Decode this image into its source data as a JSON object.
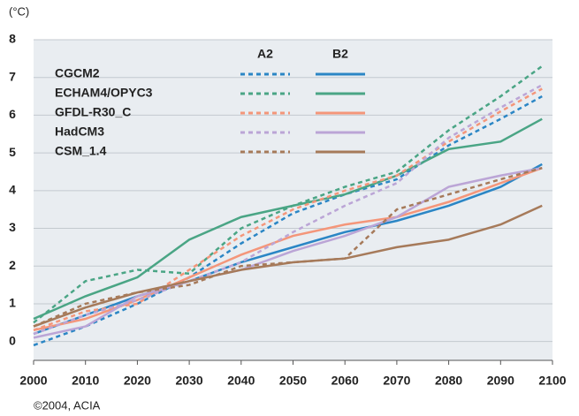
{
  "chart_data": {
    "type": "line",
    "y_label": "(°C)",
    "source": "©2004, ACIA",
    "x": [
      2000,
      2010,
      2020,
      2030,
      2040,
      2050,
      2060,
      2070,
      2080,
      2090,
      2098
    ],
    "xlim": [
      2000,
      2100
    ],
    "xticks": [
      2000,
      2010,
      2020,
      2030,
      2040,
      2050,
      2060,
      2070,
      2080,
      2090,
      2100
    ],
    "ylim": [
      -0.5,
      8
    ],
    "yticks": [
      0,
      1,
      2,
      3,
      4,
      5,
      6,
      7,
      8
    ],
    "grid": true,
    "scenarios": [
      {
        "name": "A2",
        "style": "dashed"
      },
      {
        "name": "B2",
        "style": "solid"
      }
    ],
    "models": [
      {
        "name": "CGCM2",
        "color": "#2b86c5",
        "values": [
          [
            -0.1,
            0.4,
            1.0,
            1.7,
            2.6,
            3.4,
            3.9,
            4.3,
            5.2,
            5.9,
            6.5
          ],
          [
            0.2,
            0.7,
            1.2,
            1.6,
            2.1,
            2.5,
            2.9,
            3.2,
            3.6,
            4.1,
            4.7
          ]
        ]
      },
      {
        "name": "ECHAM4/OPYC3",
        "color": "#4aa585",
        "values": [
          [
            0.5,
            1.6,
            1.9,
            1.8,
            3.0,
            3.6,
            4.1,
            4.5,
            5.6,
            6.5,
            7.3
          ],
          [
            0.6,
            1.2,
            1.7,
            2.7,
            3.3,
            3.6,
            3.9,
            4.4,
            5.1,
            5.3,
            5.9
          ]
        ]
      },
      {
        "name": "GFDL-R30_C",
        "color": "#f4967a",
        "values": [
          [
            0.3,
            0.8,
            1.0,
            1.9,
            2.8,
            3.5,
            4.0,
            4.4,
            5.3,
            6.1,
            6.7
          ],
          [
            0.3,
            0.6,
            1.1,
            1.7,
            2.3,
            2.8,
            3.1,
            3.3,
            3.7,
            4.2,
            4.6
          ]
        ]
      },
      {
        "name": "HadCM3",
        "color": "#bba5d6",
        "values": [
          [
            0.2,
            0.7,
            1.1,
            1.6,
            2.1,
            2.9,
            3.6,
            4.2,
            5.4,
            6.2,
            6.8
          ],
          [
            0.1,
            0.4,
            1.2,
            1.6,
            1.9,
            2.4,
            2.8,
            3.3,
            4.1,
            4.4,
            4.6
          ]
        ]
      },
      {
        "name": "CSM_1.4",
        "color": "#a67a5a",
        "values": [
          [
            0.4,
            1.0,
            1.3,
            1.5,
            2.0,
            2.1,
            2.2,
            3.5,
            3.9,
            4.3,
            4.6
          ],
          [
            0.4,
            0.9,
            1.3,
            1.6,
            1.9,
            2.1,
            2.2,
            2.5,
            2.7,
            3.1,
            3.6
          ]
        ]
      }
    ]
  }
}
